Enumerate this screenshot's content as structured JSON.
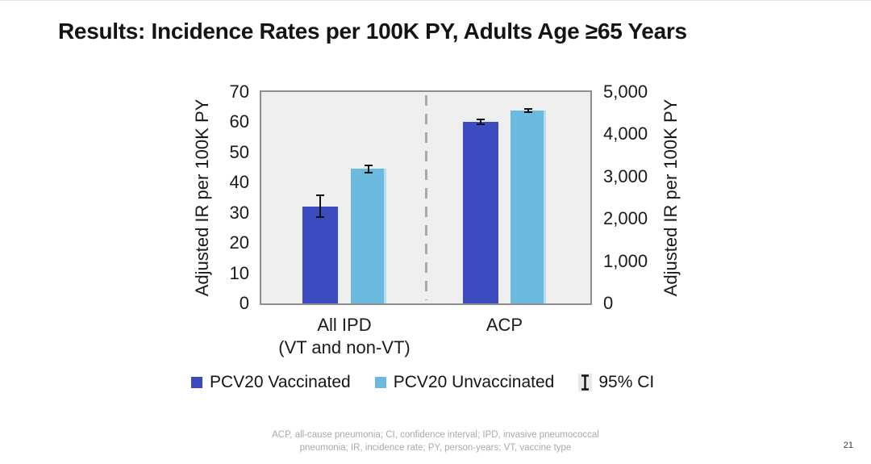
{
  "slide": {
    "title": "Results: Incidence Rates per 100K PY, Adults Age ≥65 Years",
    "page_number": "21"
  },
  "footnote": {
    "line1": "ACP, all-cause pneumonia; CI, confidence interval; IPD, invasive pneumococcal",
    "line2": "pneumonia; IR, incidence rate; PY, person-years; VT, vaccine type"
  },
  "chart_data": {
    "type": "bar",
    "title": "Incidence Rates per 100K PY, Adults Age ≥65 Years",
    "grid": false,
    "plot_background": "#efefef",
    "left_axis": {
      "label": "Adjusted IR per 100K PY",
      "min": 0,
      "max": 70,
      "tick_step": 10,
      "ticks": [
        "0",
        "10",
        "20",
        "30",
        "40",
        "50",
        "60",
        "70"
      ]
    },
    "right_axis": {
      "label": "Adjusted IR per 100K PY",
      "min": 0,
      "max": 5000,
      "tick_step": 1000,
      "ticks": [
        "0",
        "1,000",
        "2,000",
        "3,000",
        "4,000",
        "5,000"
      ]
    },
    "groups": [
      {
        "label_lines": [
          "All IPD",
          "(VT and non-VT)"
        ],
        "axis": "left",
        "bars": [
          {
            "series": "PCV20 Vaccinated",
            "value": 32,
            "ci_low": 28.5,
            "ci_high": 35.8
          },
          {
            "series": "PCV20 Unvaccinated",
            "value": 44.5,
            "ci_low": 43.3,
            "ci_high": 45.8
          }
        ]
      },
      {
        "label_lines": [
          "ACP"
        ],
        "axis": "right",
        "bars": [
          {
            "series": "PCV20 Vaccinated",
            "value": 4300,
            "ci_low": 4240,
            "ci_high": 4360
          },
          {
            "series": "PCV20 Unvaccinated",
            "value": 4560,
            "ci_low": 4520,
            "ci_high": 4600
          }
        ]
      }
    ],
    "series_colors": {
      "PCV20 Vaccinated": "#3B4CC0",
      "PCV20 Unvaccinated": "#6ABAE0"
    },
    "error_bar_color": "#111111",
    "legend_position": "bottom",
    "legend": [
      {
        "label": "PCV20 Vaccinated",
        "swatch": "square",
        "color": "#3B4CC0"
      },
      {
        "label": "PCV20 Unvaccinated",
        "swatch": "square",
        "color": "#6ABAE0"
      },
      {
        "label": "95% CI",
        "swatch": "error-bar",
        "color": "#111111"
      }
    ]
  }
}
